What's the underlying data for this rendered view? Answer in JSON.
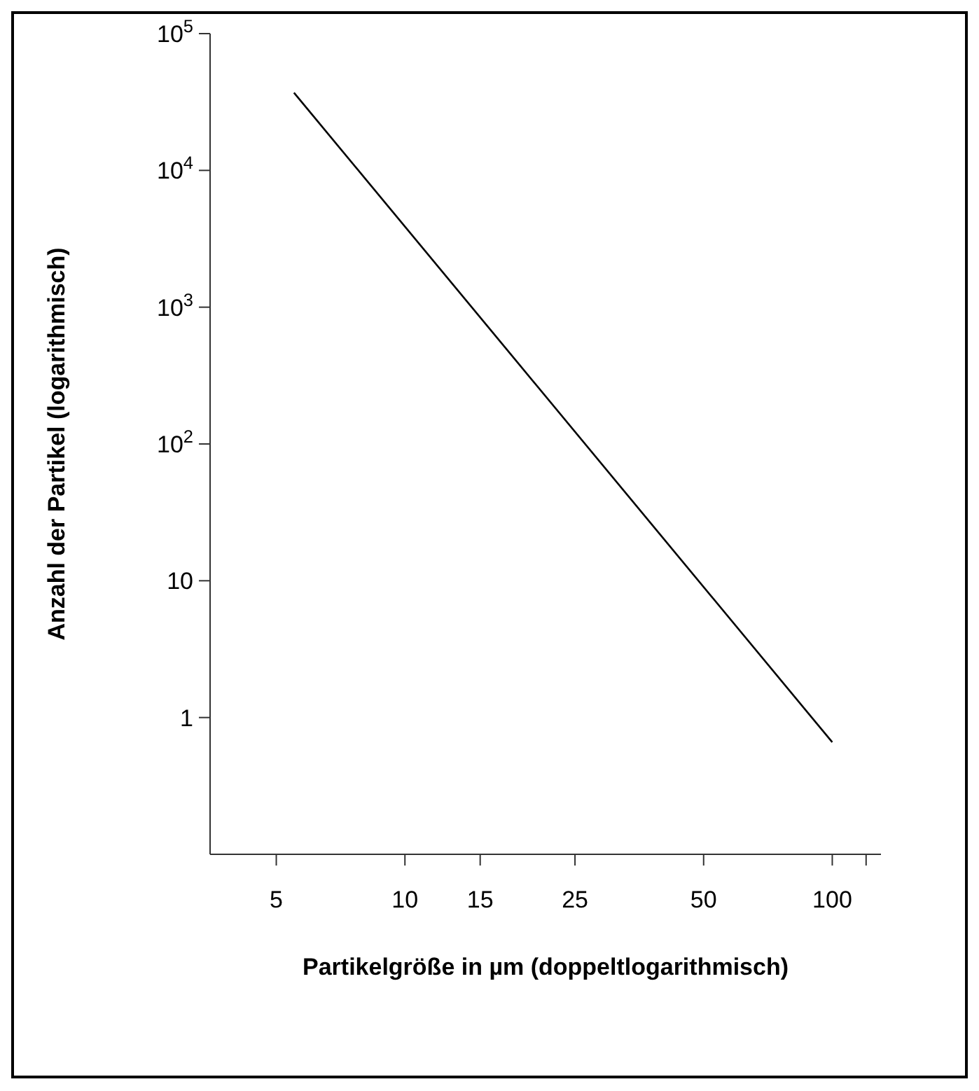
{
  "chart_data": {
    "type": "line",
    "xlabel": "Partikelgröße in µm (doppeltlogarithmisch)",
    "ylabel": "Anzahl der Partikel (logarithmisch)",
    "x": [
      5.5,
      100
    ],
    "series": [
      {
        "color": "#000000",
        "values": [
          37000,
          0.66
        ]
      }
    ],
    "log": "xy",
    "xlim": [
      3.5,
      130
    ],
    "xticks": [
      5,
      10,
      15,
      25,
      50,
      100,
      {
        "value": 120,
        "label": null
      }
    ],
    "ylim": [
      0.1,
      100000
    ],
    "yticks": [
      {
        "value": 1,
        "label": "1"
      },
      10,
      {
        "value": 100,
        "label": "10$^{2}$"
      },
      {
        "value": 1000,
        "label": "10$^{3}$"
      },
      {
        "value": 10000,
        "label": "10$^{4}$"
      },
      {
        "value": 100000,
        "label": "10$^{5}$"
      }
    ],
    "grid": false,
    "legend": false,
    "marker": "none",
    "line_style": "solid"
  }
}
